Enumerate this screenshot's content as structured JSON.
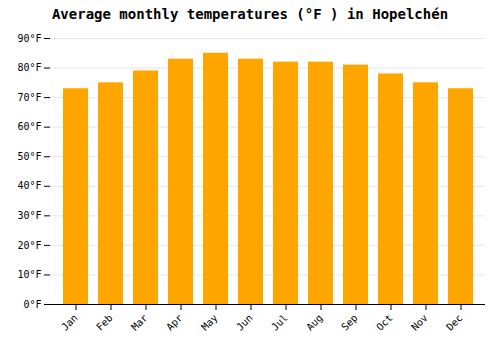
{
  "chart_data": {
    "type": "bar",
    "title": "Average monthly temperatures (°F ) in Hopelchén",
    "categories": [
      "Jan",
      "Feb",
      "Mar",
      "Apr",
      "May",
      "Jun",
      "Jul",
      "Aug",
      "Sep",
      "Oct",
      "Nov",
      "Dec"
    ],
    "values": [
      73,
      75,
      79,
      83,
      85,
      83,
      82,
      82,
      81,
      78,
      75,
      73
    ],
    "color": "#FFA500",
    "ylim": [
      0,
      90
    ],
    "yticks": [
      {
        "value": 0,
        "label": "0°F"
      },
      {
        "value": 10,
        "label": "10°F"
      },
      {
        "value": 20,
        "label": "20°F"
      },
      {
        "value": 30,
        "label": "30°F"
      },
      {
        "value": 40,
        "label": "40°F"
      },
      {
        "value": 50,
        "label": "50°F"
      },
      {
        "value": 60,
        "label": "60°F"
      },
      {
        "value": 70,
        "label": "70°F"
      },
      {
        "value": 80,
        "label": "80°F"
      },
      {
        "value": 90,
        "label": "90°F"
      }
    ],
    "grid": true
  }
}
